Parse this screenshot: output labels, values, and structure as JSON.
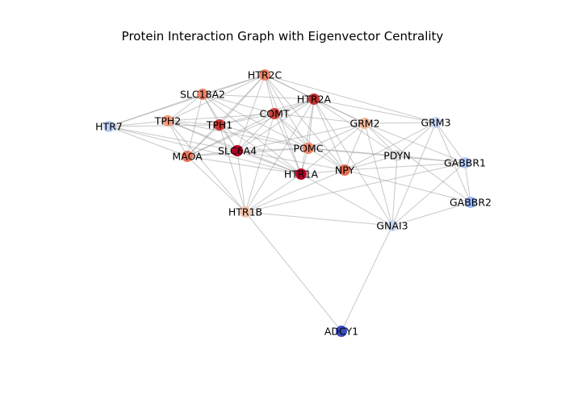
{
  "title": "Protein Interaction Graph with Eigenvector Centrality",
  "nodes": [
    {
      "id": "HTR2C",
      "color": "#ee8468"
    },
    {
      "id": "SLC18A2",
      "color": "#ee8468"
    },
    {
      "id": "HTR2A",
      "color": "#c53334"
    },
    {
      "id": "COMT",
      "color": "#cf453c"
    },
    {
      "id": "TPH2",
      "color": "#f59c7d"
    },
    {
      "id": "TPH1",
      "color": "#c83836"
    },
    {
      "id": "HTR7",
      "color": "#bad0f8"
    },
    {
      "id": "GRM2",
      "color": "#f7b89c"
    },
    {
      "id": "GRM3",
      "color": "#c4d5f3"
    },
    {
      "id": "SLC6A4",
      "color": "#b40426"
    },
    {
      "id": "POMC",
      "color": "#f08a6c"
    },
    {
      "id": "MAOA",
      "color": "#e8765c"
    },
    {
      "id": "PDYN",
      "color": "#dddcdc"
    },
    {
      "id": "HTR1A",
      "color": "#b40426"
    },
    {
      "id": "NPY",
      "color": "#e46e56"
    },
    {
      "id": "GABBR1",
      "color": "#b5cdfa"
    },
    {
      "id": "GABBR2",
      "color": "#98b9ff"
    },
    {
      "id": "HTR1B",
      "color": "#f4c5ad"
    },
    {
      "id": "GNAI3",
      "color": "#cad8ef"
    },
    {
      "id": "ADCY1",
      "color": "#3b4cc0"
    }
  ],
  "edges": [
    [
      "HTR2C",
      "SLC18A2"
    ],
    [
      "HTR2C",
      "HTR2A"
    ],
    [
      "HTR2C",
      "COMT"
    ],
    [
      "HTR2C",
      "TPH1"
    ],
    [
      "HTR2C",
      "TPH2"
    ],
    [
      "HTR2C",
      "SLC6A4"
    ],
    [
      "HTR2C",
      "HTR1A"
    ],
    [
      "HTR2C",
      "POMC"
    ],
    [
      "HTR2C",
      "GRM2"
    ],
    [
      "HTR2C",
      "NPY"
    ],
    [
      "HTR2C",
      "MAOA"
    ],
    [
      "HTR2C",
      "HTR7"
    ],
    [
      "HTR2C",
      "GRM3"
    ],
    [
      "SLC18A2",
      "TPH2"
    ],
    [
      "SLC18A2",
      "TPH1"
    ],
    [
      "SLC18A2",
      "COMT"
    ],
    [
      "SLC18A2",
      "HTR2A"
    ],
    [
      "SLC18A2",
      "SLC6A4"
    ],
    [
      "SLC18A2",
      "MAOA"
    ],
    [
      "SLC18A2",
      "HTR1A"
    ],
    [
      "SLC18A2",
      "POMC"
    ],
    [
      "SLC18A2",
      "HTR7"
    ],
    [
      "HTR2A",
      "COMT"
    ],
    [
      "HTR2A",
      "GRM2"
    ],
    [
      "HTR2A",
      "GRM3"
    ],
    [
      "HTR2A",
      "SLC6A4"
    ],
    [
      "HTR2A",
      "HTR1A"
    ],
    [
      "HTR2A",
      "POMC"
    ],
    [
      "HTR2A",
      "NPY"
    ],
    [
      "HTR2A",
      "TPH1"
    ],
    [
      "HTR2A",
      "MAOA"
    ],
    [
      "HTR2A",
      "PDYN"
    ],
    [
      "HTR2A",
      "GNAI3"
    ],
    [
      "HTR2A",
      "HTR1B"
    ],
    [
      "COMT",
      "TPH1"
    ],
    [
      "COMT",
      "SLC6A4"
    ],
    [
      "COMT",
      "MAOA"
    ],
    [
      "COMT",
      "HTR1A"
    ],
    [
      "COMT",
      "POMC"
    ],
    [
      "COMT",
      "TPH2"
    ],
    [
      "COMT",
      "NPY"
    ],
    [
      "COMT",
      "HTR1B"
    ],
    [
      "COMT",
      "GRM2"
    ],
    [
      "TPH2",
      "TPH1"
    ],
    [
      "TPH2",
      "MAOA"
    ],
    [
      "TPH2",
      "SLC6A4"
    ],
    [
      "TPH2",
      "HTR1A"
    ],
    [
      "TPH2",
      "HTR7"
    ],
    [
      "TPH2",
      "POMC"
    ],
    [
      "TPH2",
      "HTR1B"
    ],
    [
      "TPH1",
      "SLC6A4"
    ],
    [
      "TPH1",
      "MAOA"
    ],
    [
      "TPH1",
      "HTR1A"
    ],
    [
      "TPH1",
      "HTR1B"
    ],
    [
      "TPH1",
      "POMC"
    ],
    [
      "TPH1",
      "HTR7"
    ],
    [
      "HTR7",
      "SLC6A4"
    ],
    [
      "HTR7",
      "MAOA"
    ],
    [
      "HTR7",
      "HTR1A"
    ],
    [
      "SLC6A4",
      "MAOA"
    ],
    [
      "SLC6A4",
      "HTR1A"
    ],
    [
      "SLC6A4",
      "POMC"
    ],
    [
      "SLC6A4",
      "HTR1B"
    ],
    [
      "SLC6A4",
      "NPY"
    ],
    [
      "SLC6A4",
      "GRM2"
    ],
    [
      "MAOA",
      "HTR1A"
    ],
    [
      "MAOA",
      "HTR1B"
    ],
    [
      "MAOA",
      "POMC"
    ],
    [
      "POMC",
      "HTR1A"
    ],
    [
      "POMC",
      "NPY"
    ],
    [
      "POMC",
      "PDYN"
    ],
    [
      "POMC",
      "GRM2"
    ],
    [
      "POMC",
      "GABBR1"
    ],
    [
      "HTR1A",
      "NPY"
    ],
    [
      "HTR1A",
      "HTR1B"
    ],
    [
      "HTR1A",
      "GNAI3"
    ],
    [
      "HTR1A",
      "GRM2"
    ],
    [
      "NPY",
      "PDYN"
    ],
    [
      "NPY",
      "GRM2"
    ],
    [
      "NPY",
      "GRM3"
    ],
    [
      "NPY",
      "GABBR1"
    ],
    [
      "NPY",
      "GABBR2"
    ],
    [
      "NPY",
      "HTR1B"
    ],
    [
      "GRM2",
      "GRM3"
    ],
    [
      "GRM2",
      "GABBR1"
    ],
    [
      "GRM2",
      "GABBR2"
    ],
    [
      "GRM2",
      "GNAI3"
    ],
    [
      "GRM2",
      "PDYN"
    ],
    [
      "GRM3",
      "GABBR1"
    ],
    [
      "GRM3",
      "GABBR2"
    ],
    [
      "GRM3",
      "GNAI3"
    ],
    [
      "GRM3",
      "PDYN"
    ],
    [
      "GABBR1",
      "GABBR2"
    ],
    [
      "GABBR1",
      "GNAI3"
    ],
    [
      "GABBR1",
      "PDYN"
    ],
    [
      "GABBR1",
      "HTR1B"
    ],
    [
      "GABBR2",
      "GNAI3"
    ],
    [
      "PDYN",
      "GNAI3"
    ],
    [
      "HTR1B",
      "GNAI3"
    ],
    [
      "HTR1B",
      "ADCY1"
    ],
    [
      "GNAI3",
      "ADCY1"
    ]
  ]
}
